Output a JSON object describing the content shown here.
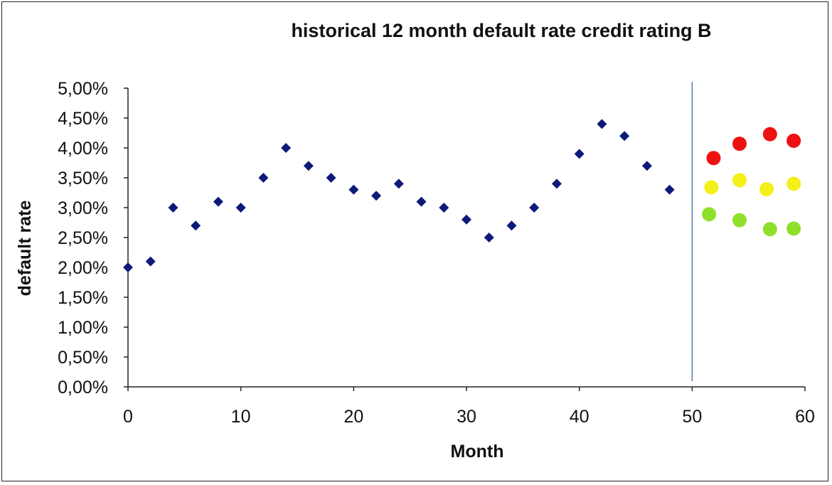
{
  "chart_data": {
    "type": "scatter",
    "title": "historical 12 month default rate credit rating B",
    "xlabel": "Month",
    "ylabel": "default rate",
    "xlim": [
      0,
      60
    ],
    "ylim": [
      0,
      0.05
    ],
    "x_ticks": [
      0,
      10,
      20,
      30,
      40,
      50,
      60
    ],
    "y_ticks": [
      "0,00%",
      "0,50%",
      "1,00%",
      "1,50%",
      "2,00%",
      "2,50%",
      "3,00%",
      "3,50%",
      "4,00%",
      "4,50%",
      "5,00%"
    ],
    "y_tick_values": [
      0,
      0.005,
      0.01,
      0.015,
      0.02,
      0.025,
      0.03,
      0.035,
      0.04,
      0.045,
      0.05
    ],
    "grid": false,
    "legend": "none",
    "vertical_line_x": 50,
    "series": [
      {
        "marker": "diamond",
        "color": "#0d1a7a",
        "points": [
          {
            "x": 0,
            "y": 0.02
          },
          {
            "x": 2,
            "y": 0.021
          },
          {
            "x": 4,
            "y": 0.03
          },
          {
            "x": 6,
            "y": 0.027
          },
          {
            "x": 8,
            "y": 0.031
          },
          {
            "x": 10,
            "y": 0.03
          },
          {
            "x": 12,
            "y": 0.035
          },
          {
            "x": 14,
            "y": 0.04
          },
          {
            "x": 16,
            "y": 0.037
          },
          {
            "x": 18,
            "y": 0.035
          },
          {
            "x": 20,
            "y": 0.033
          },
          {
            "x": 22,
            "y": 0.032
          },
          {
            "x": 24,
            "y": 0.034
          },
          {
            "x": 26,
            "y": 0.031
          },
          {
            "x": 28,
            "y": 0.03
          },
          {
            "x": 30,
            "y": 0.028
          },
          {
            "x": 32,
            "y": 0.025
          },
          {
            "x": 34,
            "y": 0.027
          },
          {
            "x": 36,
            "y": 0.03
          },
          {
            "x": 38,
            "y": 0.034
          },
          {
            "x": 40,
            "y": 0.039
          },
          {
            "x": 42,
            "y": 0.044
          },
          {
            "x": 44,
            "y": 0.042
          },
          {
            "x": 46,
            "y": 0.037
          },
          {
            "x": 48,
            "y": 0.033
          }
        ]
      },
      {
        "marker": "circle",
        "color": "#ee1111",
        "points": [
          {
            "x": 51.9,
            "y": 0.0383
          },
          {
            "x": 54.2,
            "y": 0.0407
          },
          {
            "x": 56.9,
            "y": 0.0423
          },
          {
            "x": 59.0,
            "y": 0.0412
          }
        ]
      },
      {
        "marker": "circle",
        "color": "#f5ef1a",
        "points": [
          {
            "x": 51.7,
            "y": 0.0334
          },
          {
            "x": 54.2,
            "y": 0.0346
          },
          {
            "x": 56.6,
            "y": 0.0331
          },
          {
            "x": 59.0,
            "y": 0.034
          }
        ]
      },
      {
        "marker": "circle",
        "color": "#8fe02a",
        "points": [
          {
            "x": 51.5,
            "y": 0.0289
          },
          {
            "x": 54.2,
            "y": 0.0279
          },
          {
            "x": 56.9,
            "y": 0.0264
          },
          {
            "x": 59.0,
            "y": 0.0265
          }
        ]
      }
    ]
  }
}
